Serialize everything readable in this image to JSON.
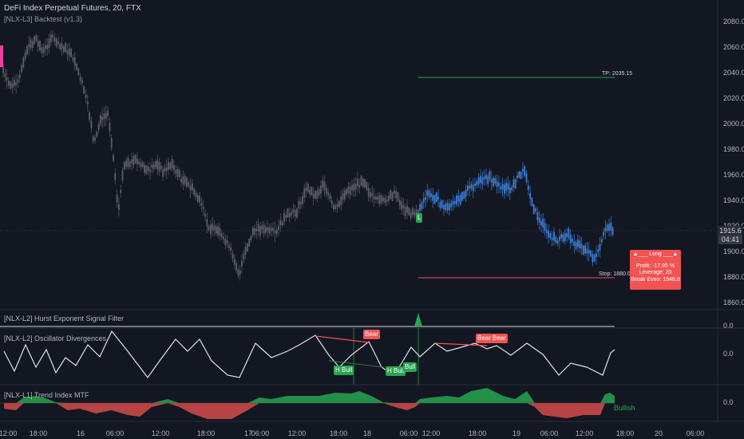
{
  "header": {
    "symbol_line": "DeFi Index Perpetual Futures, 20, FTX",
    "indicator_line": "[NLX-L3] Backtest (v1.3)"
  },
  "panes": {
    "hurst": "[NLX-L2] Hurst Exponent Signal Filter",
    "divergence": "[NLX-L2] Oscillator Divergences",
    "trend": "[NLX-L1] Trend Index MTF"
  },
  "price_axis": {
    "ticks": [
      "2080.0",
      "2060.0",
      "2040.0",
      "2020.0",
      "2000.0",
      "1980.0",
      "1960.0",
      "1940.0",
      "1920.0",
      "1900.0",
      "1880.0",
      "1860.0"
    ],
    "last_price": "1915.6",
    "countdown": "04:41",
    "hurst_zero": "0.0",
    "div_zero": "0.0",
    "trend_zero": "0.0"
  },
  "time_axis": [
    "12:00",
    "18:00",
    "16",
    "06:00",
    "12:00",
    "18:00",
    "17",
    "06:00",
    "12:00",
    "18:00",
    "18",
    "06:00",
    "12:00",
    "18:00",
    "19",
    "06:00",
    "12:00",
    "18:00",
    "20",
    "06:00"
  ],
  "trade": {
    "tp_label": "TP: 2035.15",
    "stop_label": "Stop: 1880.09",
    "entry_marker": "L",
    "box_header": "▲___ Long ___▲",
    "profit": "Profit: -17.95 %",
    "leverage": "Leverage: 20",
    "break_even": "Break Even: 1948.8"
  },
  "signals": {
    "bear": "Bear",
    "h_bull": "H Bull",
    "bull": "Bull"
  },
  "trend_state": "Bullish",
  "colors": {
    "background": "#131722",
    "candle_history": "#5d606b",
    "candle_active": "#3d7fd6",
    "bull": "#26a650",
    "bear": "#f05352",
    "tp_line": "#26a650",
    "stop_line": "#f05352"
  }
}
